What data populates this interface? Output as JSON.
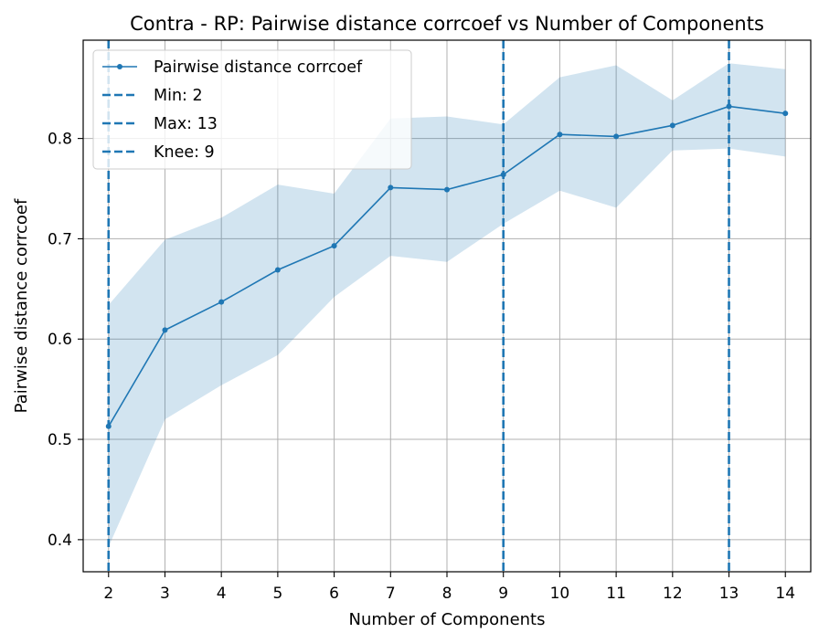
{
  "chart_data": {
    "type": "line",
    "title": "Contra - RP: Pairwise distance corrcoef vs Number of Components",
    "xlabel": "Number of Components",
    "ylabel": "Pairwise distance corrcoef",
    "xlim": [
      1.55,
      14.45
    ],
    "ylim": [
      0.368,
      0.898
    ],
    "xticks": [
      2,
      3,
      4,
      5,
      6,
      7,
      8,
      9,
      10,
      11,
      12,
      13,
      14
    ],
    "yticks": [
      0.4,
      0.5,
      0.6,
      0.7,
      0.8
    ],
    "ytick_labels": [
      "0.4",
      "0.5",
      "0.6",
      "0.7",
      "0.8"
    ],
    "grid": true,
    "legend_position": "upper-left",
    "series": [
      {
        "name": "Pairwise distance corrcoef",
        "color": "#1f77b4",
        "x": [
          2,
          3,
          4,
          5,
          6,
          7,
          8,
          9,
          10,
          11,
          12,
          13,
          14
        ],
        "values": [
          0.513,
          0.609,
          0.637,
          0.669,
          0.693,
          0.751,
          0.749,
          0.764,
          0.804,
          0.802,
          0.813,
          0.832,
          0.825
        ],
        "band_upper": [
          0.634,
          0.699,
          0.721,
          0.754,
          0.745,
          0.82,
          0.822,
          0.814,
          0.861,
          0.873,
          0.838,
          0.875,
          0.869
        ],
        "band_lower": [
          0.393,
          0.52,
          0.554,
          0.584,
          0.642,
          0.683,
          0.677,
          0.715,
          0.748,
          0.731,
          0.788,
          0.79,
          0.782
        ]
      }
    ],
    "vlines": [
      {
        "label": "Min: 2",
        "x": 2,
        "color": "#1f77b4"
      },
      {
        "label": "Max: 13",
        "x": 13,
        "color": "#1f77b4"
      },
      {
        "label": "Knee: 9",
        "x": 9,
        "color": "#1f77b4"
      }
    ],
    "band_color": "#1f77b4"
  }
}
